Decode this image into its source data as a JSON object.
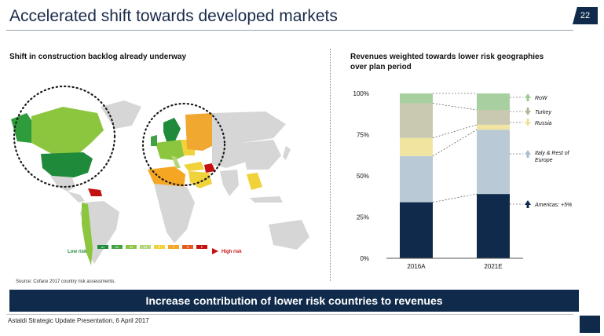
{
  "slide": {
    "title": "Accelerated shift towards developed markets",
    "page_number": "22"
  },
  "left_panel": {
    "heading": "Shift in construction backlog already underway",
    "legend": {
      "low_label": "Low risk",
      "high_label": "High risk",
      "swatch_labels": [
        "A1",
        "A2",
        "A3",
        "A4",
        "B",
        "C",
        "D",
        "E"
      ],
      "swatch_colors": [
        "#1f8a3a",
        "#43a047",
        "#8cc63f",
        "#b5d67a",
        "#f0d23a",
        "#f5a623",
        "#e85a1c",
        "#c41010"
      ]
    },
    "source": "Source: Coface 2017 country risk assessments."
  },
  "right_panel": {
    "heading_line1": "Revenues weighted towards lower risk geographies",
    "heading_line2": "over plan period"
  },
  "chart_data": {
    "type": "bar",
    "stacked": true,
    "categories": [
      "2016A",
      "2021E"
    ],
    "ylim": [
      0,
      100
    ],
    "yticks": [
      0,
      25,
      50,
      75,
      100
    ],
    "ytick_labels": [
      "0%",
      "25%",
      "50%",
      "75%",
      "100%"
    ],
    "series": [
      {
        "name": "Americas: +5%",
        "color": "#0f2a4a",
        "values": [
          34,
          39
        ],
        "arrow": "up",
        "arrow_color": "#0f2a4a"
      },
      {
        "name": "Italy & Rest of Europe",
        "color": "#b9c9d6",
        "values": [
          28,
          39
        ],
        "arrow": "up",
        "arrow_color": "#a9bccb"
      },
      {
        "name": "Russia",
        "color": "#f1e4a1",
        "values": [
          11,
          3
        ],
        "arrow": "down",
        "arrow_color": "#efe09a"
      },
      {
        "name": "Turkey",
        "color": "#c9c8b1",
        "values": [
          21,
          9
        ],
        "arrow": "down",
        "arrow_color": "#b5b49d"
      },
      {
        "name": "RoW",
        "color": "#a7cf9f",
        "values": [
          6,
          10
        ],
        "arrow": "up",
        "arrow_color": "#9ccc92"
      }
    ]
  },
  "banner": {
    "text": "Increase contribution of lower risk countries to revenues"
  },
  "footer": {
    "text": "Astaldi Strategic Update Presentation, 6 April 2017"
  }
}
